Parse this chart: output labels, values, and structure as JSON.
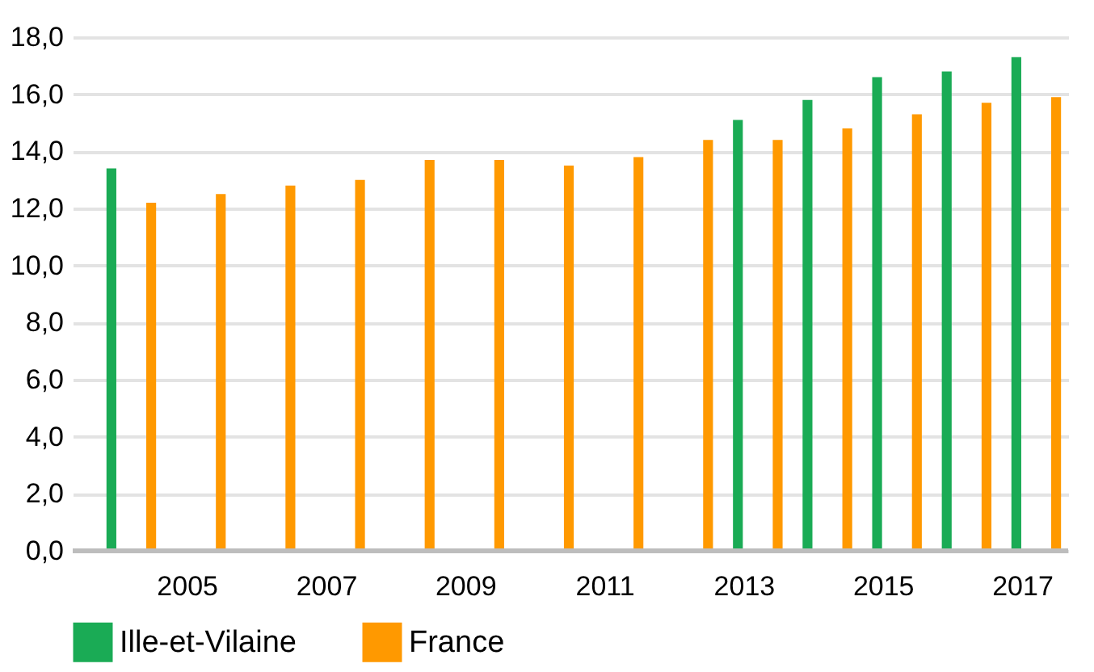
{
  "chart_data": {
    "type": "bar",
    "categories": [
      null,
      "2005",
      null,
      "2007",
      null,
      "2009",
      null,
      "2011",
      null,
      "2013",
      null,
      "2015",
      null,
      "2017"
    ],
    "series": [
      {
        "name": "Ille-et-Vilaine",
        "color": "#1aab55",
        "values": [
          13.4,
          null,
          null,
          null,
          null,
          null,
          null,
          null,
          null,
          15.1,
          15.8,
          16.6,
          16.8,
          17.3
        ]
      },
      {
        "name": "France",
        "color": "#ff9900",
        "values": [
          12.2,
          12.5,
          12.8,
          13.0,
          13.7,
          13.7,
          13.5,
          13.8,
          14.4,
          14.4,
          14.8,
          15.3,
          15.7,
          15.9
        ]
      }
    ],
    "ylim": [
      0,
      18
    ],
    "yticks": [
      {
        "value": 0,
        "label": "0,0"
      },
      {
        "value": 2,
        "label": "2,0"
      },
      {
        "value": 4,
        "label": "4,0"
      },
      {
        "value": 6,
        "label": "6,0"
      },
      {
        "value": 8,
        "label": "8,0"
      },
      {
        "value": 10,
        "label": "10,0"
      },
      {
        "value": 12,
        "label": "12,0"
      },
      {
        "value": 14,
        "label": "14,0"
      },
      {
        "value": 16,
        "label": "16,0"
      },
      {
        "value": 18,
        "label": "18,0"
      }
    ],
    "grid": "y",
    "legend": "bottom"
  }
}
